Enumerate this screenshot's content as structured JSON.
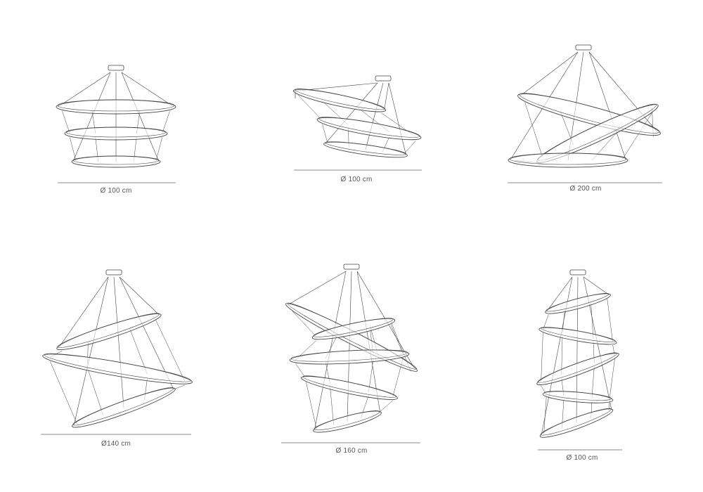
{
  "figures": [
    {
      "label": "Ø 100 cm"
    },
    {
      "label": "Ø 100 cm"
    },
    {
      "label": "Ø 200 cm"
    },
    {
      "label": "Ø140 cm"
    },
    {
      "label": "Ø 160 cm"
    },
    {
      "label": "Ø 100 cm"
    }
  ],
  "colors": {
    "line": "#444444",
    "dimension": "#888888"
  }
}
